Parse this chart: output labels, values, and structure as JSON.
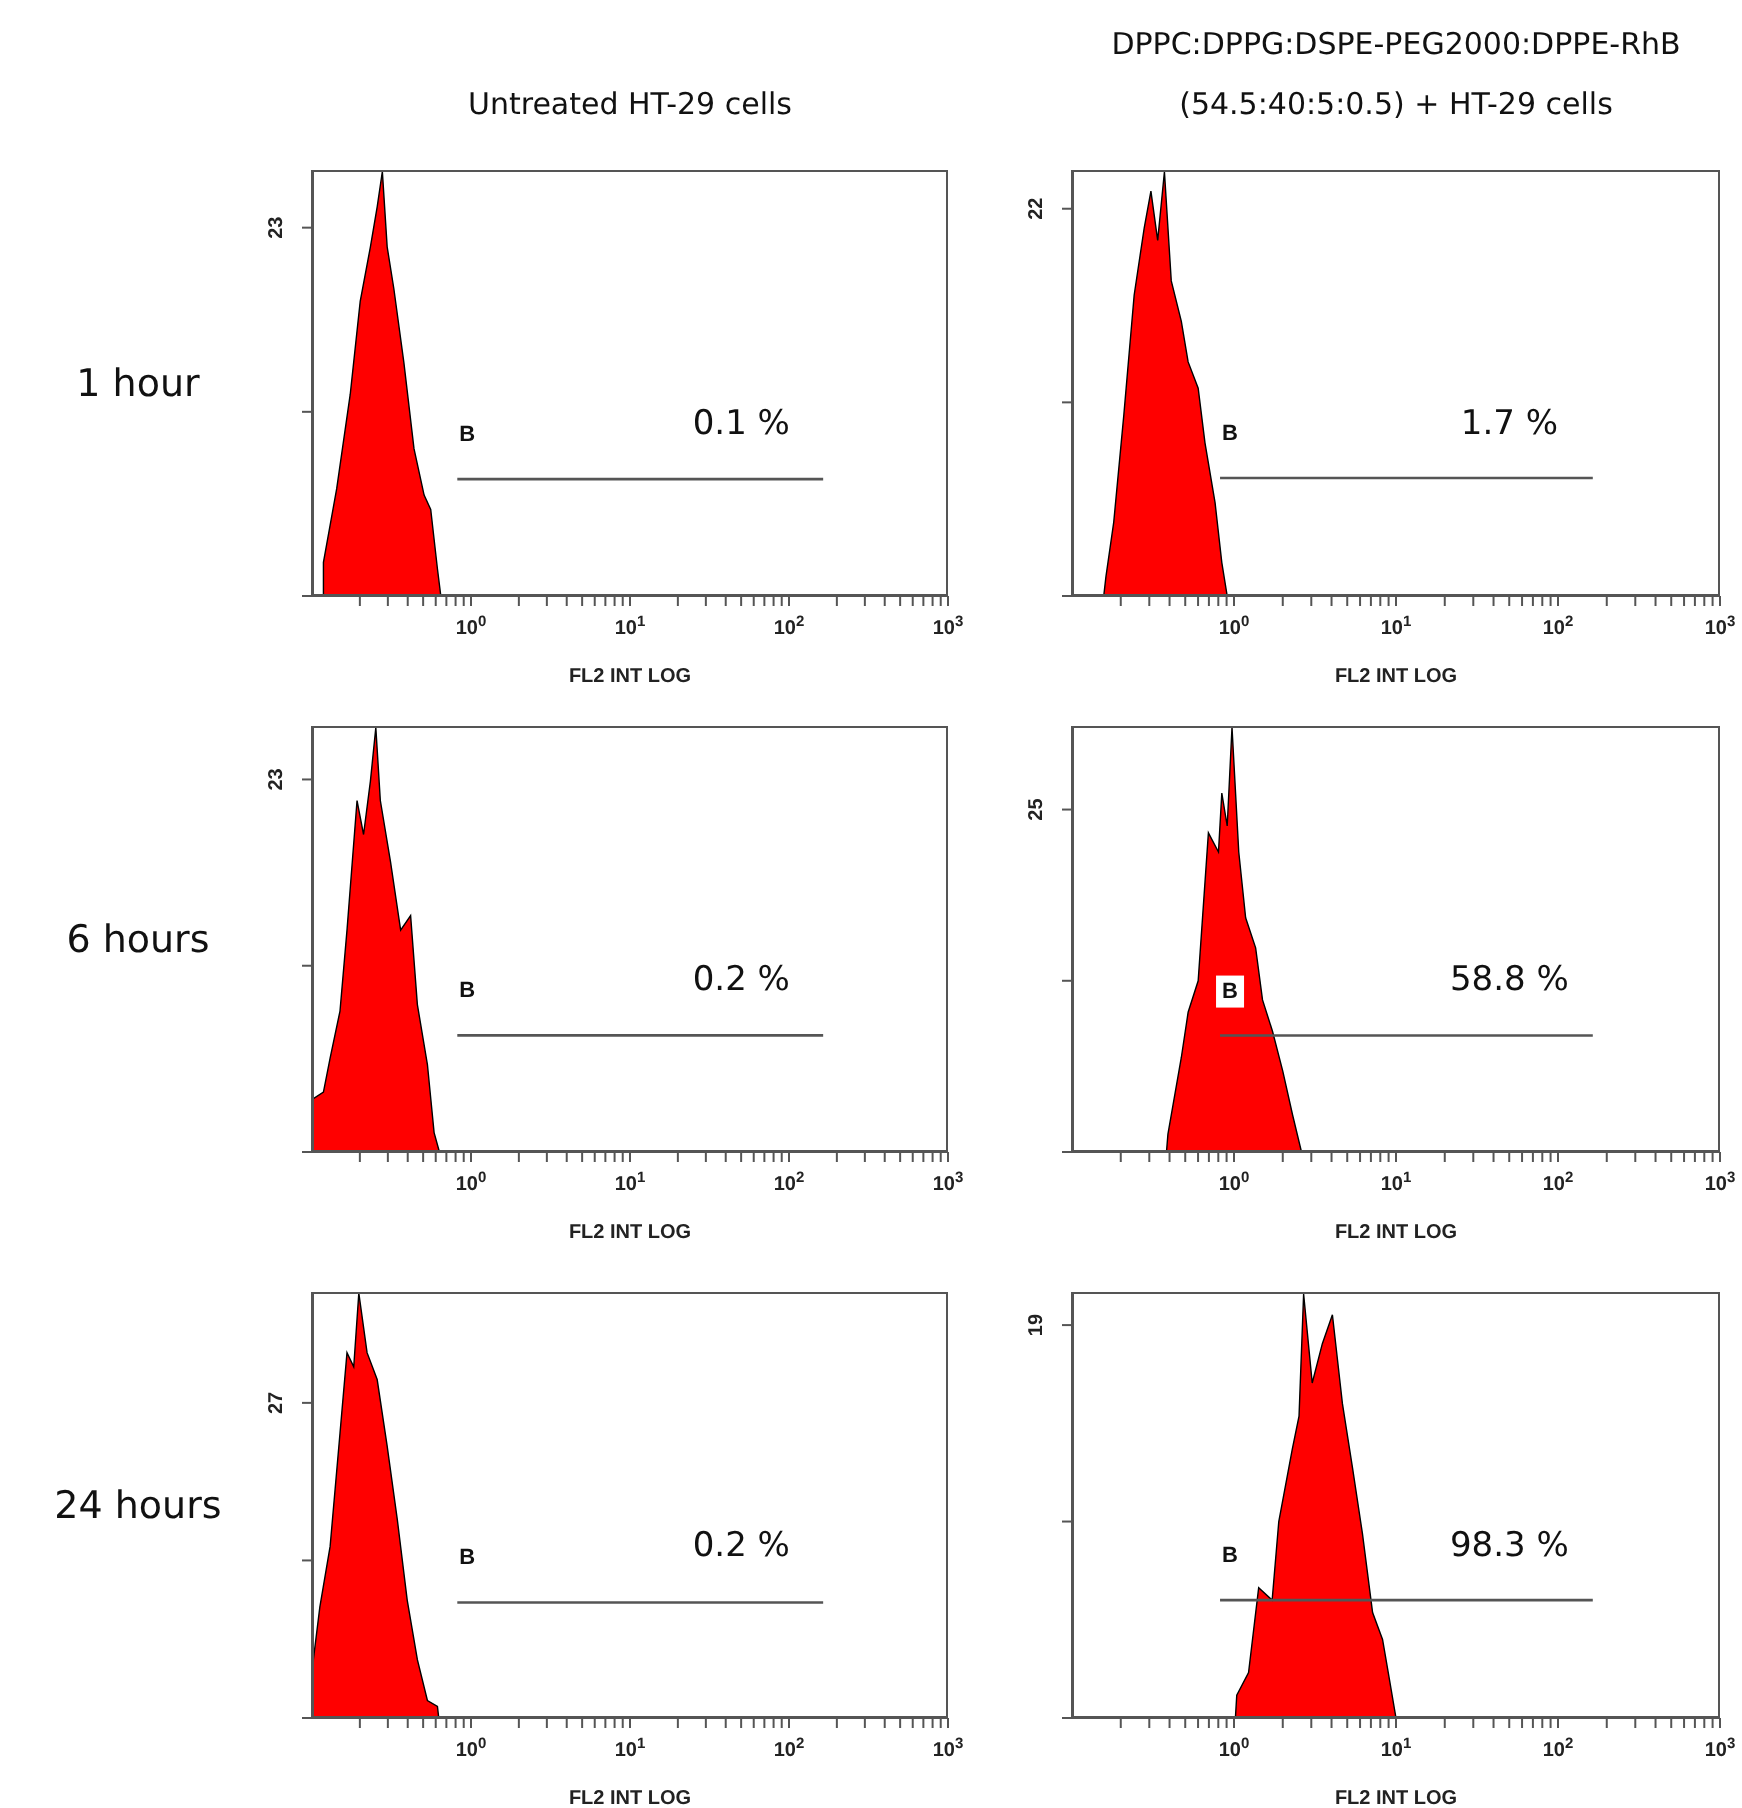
{
  "chart_data": [
    {
      "type": "area",
      "title": "Untreated HT-29 cells",
      "ylabel": "1 hour",
      "xlabel": "FL2 INT LOG",
      "log": "x",
      "grid": false,
      "xlim": [
        0.1,
        1000
      ],
      "xticks": [
        {
          "value": 0.2,
          "label": null
        },
        {
          "value": 0.3,
          "label": null
        },
        {
          "value": 0.4,
          "label": null
        },
        {
          "value": 0.5,
          "label": null
        },
        {
          "value": 0.6,
          "label": null
        },
        {
          "value": 0.7,
          "label": null
        },
        {
          "value": 0.8,
          "label": null
        },
        {
          "value": 0.9,
          "label": null
        },
        {
          "value": 1,
          "label": "10$^{0}$"
        },
        {
          "value": 2,
          "label": null
        },
        {
          "value": 3,
          "label": null
        },
        {
          "value": 4,
          "label": null
        },
        {
          "value": 5,
          "label": null
        },
        {
          "value": 6,
          "label": null
        },
        {
          "value": 7,
          "label": null
        },
        {
          "value": 8,
          "label": null
        },
        {
          "value": 9,
          "label": null
        },
        {
          "value": 10,
          "label": "10$^{1}$"
        },
        {
          "value": 20,
          "label": null
        },
        {
          "value": 30,
          "label": null
        },
        {
          "value": 40,
          "label": null
        },
        {
          "value": 50,
          "label": null
        },
        {
          "value": 60,
          "label": null
        },
        {
          "value": 70,
          "label": null
        },
        {
          "value": 80,
          "label": null
        },
        {
          "value": 90,
          "label": null
        },
        {
          "value": 100,
          "label": "10$^{2}$"
        },
        {
          "value": 200,
          "label": null
        },
        {
          "value": 300,
          "label": null
        },
        {
          "value": 400,
          "label": null
        },
        {
          "value": 500,
          "label": null
        },
        {
          "value": 600,
          "label": null
        },
        {
          "value": 700,
          "label": null
        },
        {
          "value": 800,
          "label": null
        },
        {
          "value": 900,
          "label": null
        },
        {
          "value": 1000,
          "label": "10$^{3}$"
        }
      ],
      "ylim": [
        0,
        26.6
      ],
      "yticks": [
        {
          "value": 0,
          "label": null
        },
        {
          "value": 11.5,
          "label": null
        },
        23
      ],
      "series": [
        {
          "color": "#ff0000",
          "x": [
            0.118,
            0.118,
            0.143,
            0.174,
            0.201,
            0.233,
            0.257,
            0.277,
            0.297,
            0.327,
            0.378,
            0.438,
            0.507,
            0.558,
            0.615,
            0.646
          ],
          "values": [
            0,
            2.1,
            6.7,
            12.6,
            18.4,
            21.8,
            24.3,
            26.5,
            21.8,
            19.2,
            14.6,
            9.2,
            6.3,
            5.4,
            1.7,
            0
          ]
        },
        {
          "type": "line",
          "color": "#555555",
          "x": [
            0.82,
            164
          ],
          "values": [
            7.3,
            7.3
          ]
        }
      ],
      "annotations": [
        "B",
        "0.1 %"
      ]
    },
    {
      "type": "area",
      "title": "DPPC:DPPG:DSPE-PEG2000:DPPE-RhB (54.5:40:5:0.5) + HT-29 cells",
      "xlabel": "FL2 INT LOG",
      "log": "x",
      "grid": false,
      "xlim": [
        0.1,
        1000
      ],
      "xticks": [
        {
          "value": 0.2,
          "label": null
        },
        {
          "value": 0.3,
          "label": null
        },
        {
          "value": 0.4,
          "label": null
        },
        {
          "value": 0.5,
          "label": null
        },
        {
          "value": 0.6,
          "label": null
        },
        {
          "value": 0.7,
          "label": null
        },
        {
          "value": 0.8,
          "label": null
        },
        {
          "value": 0.9,
          "label": null
        },
        {
          "value": 1,
          "label": "10$^{0}$"
        },
        {
          "value": 2,
          "label": null
        },
        {
          "value": 3,
          "label": null
        },
        {
          "value": 4,
          "label": null
        },
        {
          "value": 5,
          "label": null
        },
        {
          "value": 6,
          "label": null
        },
        {
          "value": 7,
          "label": null
        },
        {
          "value": 8,
          "label": null
        },
        {
          "value": 9,
          "label": null
        },
        {
          "value": 10,
          "label": "10$^{1}$"
        },
        {
          "value": 20,
          "label": null
        },
        {
          "value": 30,
          "label": null
        },
        {
          "value": 40,
          "label": null
        },
        {
          "value": 50,
          "label": null
        },
        {
          "value": 60,
          "label": null
        },
        {
          "value": 70,
          "label": null
        },
        {
          "value": 80,
          "label": null
        },
        {
          "value": 90,
          "label": null
        },
        {
          "value": 100,
          "label": "10$^{2}$"
        },
        {
          "value": 200,
          "label": null
        },
        {
          "value": 300,
          "label": null
        },
        {
          "value": 400,
          "label": null
        },
        {
          "value": 500,
          "label": null
        },
        {
          "value": 600,
          "label": null
        },
        {
          "value": 700,
          "label": null
        },
        {
          "value": 800,
          "label": null
        },
        {
          "value": 900,
          "label": null
        },
        {
          "value": 1000,
          "label": "10$^{3}$"
        }
      ],
      "ylim": [
        0,
        24.2
      ],
      "yticks": [
        {
          "value": 0,
          "label": null
        },
        {
          "value": 11,
          "label": null
        },
        22
      ],
      "series": [
        {
          "color": "#ff0000",
          "x": [
            0.157,
            0.162,
            0.181,
            0.209,
            0.242,
            0.279,
            0.307,
            0.338,
            0.372,
            0.41,
            0.473,
            0.521,
            0.601,
            0.662,
            0.764,
            0.841,
            0.908
          ],
          "values": [
            0,
            1.1,
            4.2,
            10.3,
            17.1,
            20.9,
            23,
            20.2,
            24.1,
            17.9,
            15.6,
            13.3,
            11.8,
            8.7,
            5.3,
            1.9,
            0
          ]
        },
        {
          "type": "line",
          "color": "#555555",
          "x": [
            0.82,
            164
          ],
          "values": [
            6.7,
            6.7
          ]
        }
      ],
      "annotations": [
        "B",
        "1.7 %"
      ]
    },
    {
      "type": "area",
      "ylabel": "6 hours",
      "xlabel": "FL2 INT LOG",
      "log": "x",
      "grid": false,
      "xlim": [
        0.1,
        1000
      ],
      "xticks": [
        {
          "value": 0.2,
          "label": null
        },
        {
          "value": 0.3,
          "label": null
        },
        {
          "value": 0.4,
          "label": null
        },
        {
          "value": 0.5,
          "label": null
        },
        {
          "value": 0.6,
          "label": null
        },
        {
          "value": 0.7,
          "label": null
        },
        {
          "value": 0.8,
          "label": null
        },
        {
          "value": 0.9,
          "label": null
        },
        {
          "value": 1,
          "label": "10$^{0}$"
        },
        {
          "value": 2,
          "label": null
        },
        {
          "value": 3,
          "label": null
        },
        {
          "value": 4,
          "label": null
        },
        {
          "value": 5,
          "label": null
        },
        {
          "value": 6,
          "label": null
        },
        {
          "value": 7,
          "label": null
        },
        {
          "value": 8,
          "label": null
        },
        {
          "value": 9,
          "label": null
        },
        {
          "value": 10,
          "label": "10$^{1}$"
        },
        {
          "value": 20,
          "label": null
        },
        {
          "value": 30,
          "label": null
        },
        {
          "value": 40,
          "label": null
        },
        {
          "value": 50,
          "label": null
        },
        {
          "value": 60,
          "label": null
        },
        {
          "value": 70,
          "label": null
        },
        {
          "value": 80,
          "label": null
        },
        {
          "value": 90,
          "label": null
        },
        {
          "value": 100,
          "label": "10$^{2}$"
        },
        {
          "value": 200,
          "label": null
        },
        {
          "value": 300,
          "label": null
        },
        {
          "value": 400,
          "label": null
        },
        {
          "value": 500,
          "label": null
        },
        {
          "value": 600,
          "label": null
        },
        {
          "value": 700,
          "label": null
        },
        {
          "value": 800,
          "label": null
        },
        {
          "value": 900,
          "label": null
        },
        {
          "value": 1000,
          "label": "10$^{3}$"
        }
      ],
      "ylim": [
        0,
        26.3
      ],
      "yticks": [
        {
          "value": 0,
          "label": null
        },
        {
          "value": 11.5,
          "label": null
        },
        23
      ],
      "series": [
        {
          "color": "#ff0000",
          "x": [
            0.1,
            0.102,
            0.118,
            0.13,
            0.15,
            0.166,
            0.192,
            0.211,
            0.233,
            0.252,
            0.269,
            0.312,
            0.361,
            0.417,
            0.46,
            0.532,
            0.586,
            0.633
          ],
          "values": [
            0,
            3.3,
            3.7,
            5.8,
            8.7,
            13.7,
            21.7,
            19.6,
            22.9,
            26.2,
            21.7,
            17.9,
            13.7,
            14.6,
            9.1,
            5.4,
            1.2,
            0
          ]
        },
        {
          "type": "line",
          "color": "#555555",
          "x": [
            0.82,
            164
          ],
          "values": [
            7.2,
            7.2
          ]
        }
      ],
      "annotations": [
        "B",
        "0.2 %"
      ]
    },
    {
      "type": "area",
      "xlabel": "FL2 INT LOG",
      "log": "x",
      "grid": false,
      "xlim": [
        0.1,
        1000
      ],
      "xticks": [
        {
          "value": 0.2,
          "label": null
        },
        {
          "value": 0.3,
          "label": null
        },
        {
          "value": 0.4,
          "label": null
        },
        {
          "value": 0.5,
          "label": null
        },
        {
          "value": 0.6,
          "label": null
        },
        {
          "value": 0.7,
          "label": null
        },
        {
          "value": 0.8,
          "label": null
        },
        {
          "value": 0.9,
          "label": null
        },
        {
          "value": 1,
          "label": "10$^{0}$"
        },
        {
          "value": 2,
          "label": null
        },
        {
          "value": 3,
          "label": null
        },
        {
          "value": 4,
          "label": null
        },
        {
          "value": 5,
          "label": null
        },
        {
          "value": 6,
          "label": null
        },
        {
          "value": 7,
          "label": null
        },
        {
          "value": 8,
          "label": null
        },
        {
          "value": 9,
          "label": null
        },
        {
          "value": 10,
          "label": "10$^{1}$"
        },
        {
          "value": 20,
          "label": null
        },
        {
          "value": 30,
          "label": null
        },
        {
          "value": 40,
          "label": null
        },
        {
          "value": 50,
          "label": null
        },
        {
          "value": 60,
          "label": null
        },
        {
          "value": 70,
          "label": null
        },
        {
          "value": 80,
          "label": null
        },
        {
          "value": 90,
          "label": null
        },
        {
          "value": 100,
          "label": "10$^{2}$"
        },
        {
          "value": 200,
          "label": null
        },
        {
          "value": 300,
          "label": null
        },
        {
          "value": 400,
          "label": null
        },
        {
          "value": 500,
          "label": null
        },
        {
          "value": 600,
          "label": null
        },
        {
          "value": 700,
          "label": null
        },
        {
          "value": 800,
          "label": null
        },
        {
          "value": 900,
          "label": null
        },
        {
          "value": 1000,
          "label": "10$^{3}$"
        }
      ],
      "ylim": [
        0,
        31.1
      ],
      "yticks": [
        {
          "value": 0,
          "label": null
        },
        {
          "value": 12.5,
          "label": null
        },
        25
      ],
      "series": [
        {
          "color": "#ff0000",
          "x": [
            0.383,
            0.391,
            0.473,
            0.521,
            0.601,
            0.695,
            0.802,
            0.841,
            0.908,
            0.972,
            1.07,
            1.18,
            1.36,
            1.5,
            1.73,
            2.0,
            2.3,
            2.61
          ],
          "values": [
            0,
            1.3,
            6.9,
            10.2,
            12.5,
            23.3,
            21.9,
            26.2,
            23.8,
            31,
            21.9,
            17.1,
            14.9,
            11.1,
            8.8,
            5.9,
            2.7,
            0
          ]
        },
        {
          "type": "line",
          "color": "#555555",
          "x": [
            0.82,
            164
          ],
          "values": [
            8.5,
            8.5
          ]
        }
      ],
      "annotations": [
        "B",
        "58.8 %"
      ]
    },
    {
      "type": "area",
      "ylabel": "24 hours",
      "xlabel": "FL2 INT LOG",
      "log": "x",
      "grid": false,
      "xlim": [
        0.1,
        1000
      ],
      "xticks": [
        {
          "value": 0.2,
          "label": null
        },
        {
          "value": 0.3,
          "label": null
        },
        {
          "value": 0.4,
          "label": null
        },
        {
          "value": 0.5,
          "label": null
        },
        {
          "value": 0.6,
          "label": null
        },
        {
          "value": 0.7,
          "label": null
        },
        {
          "value": 0.8,
          "label": null
        },
        {
          "value": 0.9,
          "label": null
        },
        {
          "value": 1,
          "label": "10$^{0}$"
        },
        {
          "value": 2,
          "label": null
        },
        {
          "value": 3,
          "label": null
        },
        {
          "value": 4,
          "label": null
        },
        {
          "value": 5,
          "label": null
        },
        {
          "value": 6,
          "label": null
        },
        {
          "value": 7,
          "label": null
        },
        {
          "value": 8,
          "label": null
        },
        {
          "value": 9,
          "label": null
        },
        {
          "value": 10,
          "label": "10$^{1}$"
        },
        {
          "value": 20,
          "label": null
        },
        {
          "value": 30,
          "label": null
        },
        {
          "value": 40,
          "label": null
        },
        {
          "value": 50,
          "label": null
        },
        {
          "value": 60,
          "label": null
        },
        {
          "value": 70,
          "label": null
        },
        {
          "value": 80,
          "label": null
        },
        {
          "value": 90,
          "label": null
        },
        {
          "value": 100,
          "label": "10$^{2}$"
        },
        {
          "value": 200,
          "label": null
        },
        {
          "value": 300,
          "label": null
        },
        {
          "value": 400,
          "label": null
        },
        {
          "value": 500,
          "label": null
        },
        {
          "value": 600,
          "label": null
        },
        {
          "value": 700,
          "label": null
        },
        {
          "value": 800,
          "label": null
        },
        {
          "value": 900,
          "label": null
        },
        {
          "value": 1000,
          "label": "10$^{3}$"
        }
      ],
      "ylim": [
        0,
        36.5
      ],
      "yticks": [
        {
          "value": 0,
          "label": null
        },
        {
          "value": 13.5,
          "label": null
        },
        27
      ],
      "series": [
        {
          "color": "#ff0000",
          "x": [
            0.1,
            0.102,
            0.112,
            0.13,
            0.15,
            0.166,
            0.183,
            0.197,
            0.222,
            0.257,
            0.297,
            0.344,
            0.397,
            0.46,
            0.532,
            0.615,
            0.627
          ],
          "values": [
            0,
            5,
            9.5,
            14.7,
            24.4,
            31.3,
            30.1,
            36.4,
            31.3,
            29,
            23.3,
            17,
            10.1,
            5,
            1.5,
            1,
            0
          ]
        },
        {
          "type": "line",
          "color": "#555555",
          "x": [
            0.82,
            164
          ],
          "values": [
            9.9,
            9.9
          ]
        }
      ],
      "annotations": [
        "B",
        "0.2 %"
      ]
    },
    {
      "type": "area",
      "xlabel": "FL2 INT LOG",
      "log": "x",
      "grid": false,
      "xlim": [
        0.1,
        1000
      ],
      "xticks": [
        {
          "value": 0.2,
          "label": null
        },
        {
          "value": 0.3,
          "label": null
        },
        {
          "value": 0.4,
          "label": null
        },
        {
          "value": 0.5,
          "label": null
        },
        {
          "value": 0.6,
          "label": null
        },
        {
          "value": 0.7,
          "label": null
        },
        {
          "value": 0.8,
          "label": null
        },
        {
          "value": 0.9,
          "label": null
        },
        {
          "value": 1,
          "label": "10$^{0}$"
        },
        {
          "value": 2,
          "label": null
        },
        {
          "value": 3,
          "label": null
        },
        {
          "value": 4,
          "label": null
        },
        {
          "value": 5,
          "label": null
        },
        {
          "value": 6,
          "label": null
        },
        {
          "value": 7,
          "label": null
        },
        {
          "value": 8,
          "label": null
        },
        {
          "value": 9,
          "label": null
        },
        {
          "value": 10,
          "label": "10$^{1}$"
        },
        {
          "value": 20,
          "label": null
        },
        {
          "value": 30,
          "label": null
        },
        {
          "value": 40,
          "label": null
        },
        {
          "value": 50,
          "label": null
        },
        {
          "value": 60,
          "label": null
        },
        {
          "value": 70,
          "label": null
        },
        {
          "value": 80,
          "label": null
        },
        {
          "value": 90,
          "label": null
        },
        {
          "value": 100,
          "label": "10$^{2}$"
        },
        {
          "value": 200,
          "label": null
        },
        {
          "value": 300,
          "label": null
        },
        {
          "value": 400,
          "label": null
        },
        {
          "value": 500,
          "label": null
        },
        {
          "value": 600,
          "label": null
        },
        {
          "value": 700,
          "label": null
        },
        {
          "value": 800,
          "label": null
        },
        {
          "value": 900,
          "label": null
        },
        {
          "value": 1000,
          "label": "10$^{3}$"
        }
      ],
      "ylim": [
        0,
        20.6
      ],
      "yticks": [
        {
          "value": 0,
          "label": null
        },
        {
          "value": 9.5,
          "label": null
        },
        19
      ],
      "series": [
        {
          "color": "#ff0000",
          "x": [
            1.02,
            1.04,
            1.23,
            1.42,
            1.72,
            1.89,
            2.29,
            2.52,
            2.69,
            3.04,
            3.51,
            4.05,
            4.67,
            5.39,
            6.21,
            7.17,
            8.26,
            9.09,
            10.0
          ],
          "values": [
            0,
            1.1,
            2.2,
            6.3,
            5.7,
            9.5,
            13,
            14.6,
            20.5,
            16.2,
            18.1,
            19.5,
            15.2,
            12.1,
            8.9,
            5.1,
            3.8,
            1.9,
            0
          ]
        },
        {
          "type": "line",
          "color": "#555555",
          "x": [
            0.82,
            164
          ],
          "values": [
            5.7,
            5.7
          ]
        }
      ],
      "annotations": [
        "B",
        "98.3 %"
      ]
    }
  ]
}
